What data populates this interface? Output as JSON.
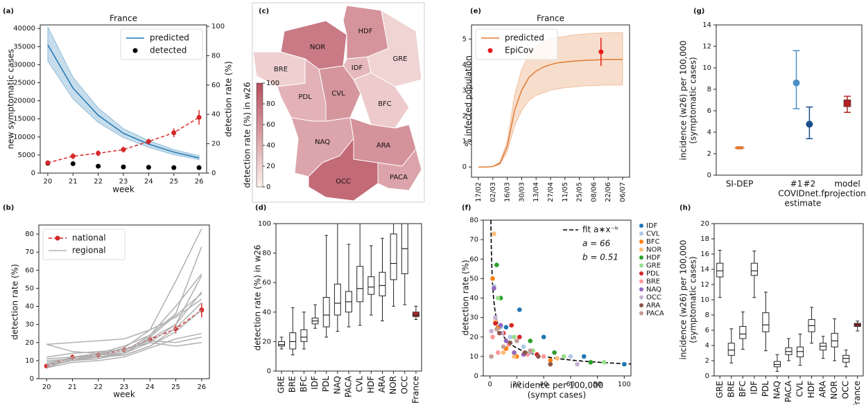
{
  "chart_data": [
    {
      "panel": "(a)",
      "type": "line",
      "title": "France",
      "xlabel": "week",
      "ylabel": "new symptomatic cases",
      "y2label": "detection rate (%)",
      "x": [
        20,
        21,
        22,
        23,
        24,
        25,
        26
      ],
      "xlim": [
        19.7,
        26.3
      ],
      "xticks": [
        20,
        21,
        22,
        23,
        24,
        25,
        26
      ],
      "ylim": [
        0,
        41000
      ],
      "yticks": [
        0,
        5000,
        10000,
        15000,
        20000,
        25000,
        30000,
        35000,
        40000
      ],
      "y2lim": [
        0,
        101
      ],
      "y2ticks": [
        0,
        20,
        40,
        60,
        80,
        100
      ],
      "legend": "upper right",
      "series": [
        {
          "name": "predicted",
          "color": "#1f77b4",
          "values": [
            35500,
            23500,
            16000,
            11000,
            8000,
            5800,
            4200
          ],
          "lower": [
            31000,
            20500,
            14000,
            9800,
            7100,
            5100,
            3700
          ],
          "upper": [
            40500,
            26500,
            18000,
            12300,
            9000,
            6500,
            4800
          ]
        },
        {
          "name": "detected",
          "color": "#000000",
          "style": "markers",
          "marker": "dot",
          "values": [
            2700,
            2600,
            1900,
            1700,
            1600,
            1500,
            1500
          ]
        },
        {
          "color": "#d62728",
          "axis": "y2",
          "style": "dashed",
          "marker": "dot",
          "values": [
            7,
            11.5,
            13.5,
            16,
            21.5,
            27.5,
            38
          ],
          "errors": [
            1,
            2,
            2,
            2,
            2,
            3,
            5
          ]
        }
      ]
    },
    {
      "panel": "(b)",
      "type": "line",
      "xlabel": "week",
      "ylabel": "detection rate (%)",
      "x": [
        20,
        21,
        22,
        23,
        24,
        25,
        26
      ],
      "xlim": [
        19.7,
        26.3
      ],
      "xticks": [
        20,
        21,
        22,
        23,
        24,
        25,
        26
      ],
      "ylim": [
        0,
        85
      ],
      "yticks": [
        0,
        10,
        20,
        30,
        40,
        50,
        60,
        70,
        80
      ],
      "legend": "upper left",
      "series": [
        {
          "name": "national",
          "color": "#d62728",
          "style": "dashed",
          "marker": "dot",
          "values": [
            7,
            11.8,
            13.2,
            16,
            21.8,
            27.5,
            38
          ],
          "errors": [
            1,
            1.5,
            1.8,
            1.6,
            2,
            2.5,
            4
          ]
        },
        {
          "name": "regional",
          "color": "#b0b0b0",
          "lines": [
            [
              7,
              10,
              11,
              14,
              20,
              30,
              48
            ],
            [
              19,
              20,
              21,
              22,
              27,
              34,
              44
            ],
            [
              6,
              11,
              13,
              15,
              24,
              40,
              58
            ],
            [
              8,
              12,
              13,
              14,
              22,
              30,
              57
            ],
            [
              11,
              12,
              14,
              18,
              24,
              36,
              73
            ],
            [
              10,
              11,
              12,
              13,
              18,
              26,
              38
            ],
            [
              6,
              9,
              10,
              12,
              17,
              22,
              25
            ],
            [
              7,
              10,
              13,
              17,
              27,
              54,
              83
            ],
            [
              9,
              11,
              12,
              14,
              23,
              35,
              47
            ],
            [
              19,
              15,
              14,
              16,
              20,
              18,
              20
            ],
            [
              12,
              14,
              15,
              16,
              21,
              20,
              23
            ],
            [
              8,
              10,
              12,
              13,
              18,
              28,
              42
            ]
          ]
        }
      ]
    },
    {
      "panel": "(c)",
      "type": "map",
      "colorbar_label": "detection rate (%) in w26",
      "regions": [
        "IDF",
        "CVL",
        "BFC",
        "NOR",
        "HDF",
        "GRE",
        "PDL",
        "BRE",
        "NAQ",
        "OCC",
        "ARA",
        "PACA"
      ],
      "values": [
        34,
        56,
        23,
        73,
        57,
        18,
        38,
        20,
        46,
        83,
        58,
        47
      ],
      "clim": [
        0,
        100
      ],
      "cticks": [
        0,
        20,
        40,
        60,
        80,
        100
      ],
      "colors": [
        "#fdf0ed",
        "#b64e5e"
      ]
    },
    {
      "panel": "(d)",
      "type": "box",
      "ylabel": "detection rate (%) in w26",
      "categories": [
        "GRE",
        "BRE",
        "BFC",
        "IDF",
        "PDL",
        "NAQ",
        "PACA",
        "CVL",
        "HDF",
        "ARA",
        "NOR",
        "OCC",
        "France"
      ],
      "whisker_low": [
        15,
        11,
        15,
        29,
        23,
        27,
        30,
        31,
        38,
        34,
        44,
        45,
        35
      ],
      "q1": [
        17,
        15,
        20,
        32,
        30,
        38,
        40,
        47,
        52,
        51,
        62,
        66,
        37
      ],
      "median": [
        18,
        20,
        23,
        34,
        38,
        46,
        47,
        56,
        57,
        58,
        73,
        83,
        38
      ],
      "q3": [
        20,
        26,
        28,
        36,
        50,
        59,
        54,
        71,
        64,
        67,
        93,
        100,
        40
      ],
      "whisker_high": [
        23,
        43,
        40,
        45,
        92,
        100,
        86,
        100,
        85,
        90,
        100,
        100,
        44
      ],
      "colors": [
        "#ffffff",
        "#ffffff",
        "#ffffff",
        "#ffffff",
        "#ffffff",
        "#ffffff",
        "#ffffff",
        "#ffffff",
        "#ffffff",
        "#ffffff",
        "#ffffff",
        "#ffffff",
        "#c0282d"
      ],
      "ylim": [
        0,
        100
      ],
      "yticks": [
        0,
        20,
        40,
        60,
        80,
        100
      ]
    },
    {
      "panel": "(e)",
      "type": "line",
      "title": "France",
      "ylabel": "% infected population",
      "x": [
        "17/02",
        null,
        "02/03",
        null,
        "16/03",
        null,
        "30/03",
        null,
        "13/04",
        null,
        "27/04",
        null,
        "11/05",
        null,
        "25/05",
        null,
        "08/06",
        null,
        "22/06",
        null,
        "06/07"
      ],
      "ylim": [
        -0.4,
        5.55
      ],
      "yticks": [
        0,
        1,
        2,
        3,
        4,
        5
      ],
      "legend": "upper left",
      "series": [
        {
          "name": "predicted",
          "color": "#e07a32",
          "values": [
            0,
            0,
            0.02,
            0.15,
            0.8,
            2.2,
            3.0,
            3.5,
            3.75,
            3.9,
            4.0,
            4.07,
            4.1,
            4.13,
            4.15,
            4.17,
            4.18,
            4.19,
            4.2,
            4.2,
            4.2
          ],
          "lower": [
            0,
            0,
            0.01,
            0.1,
            0.6,
            1.6,
            2.2,
            2.6,
            2.8,
            2.9,
            3.0,
            3.05,
            3.1,
            3.12,
            3.15,
            3.17,
            3.18,
            3.19,
            3.2,
            3.2,
            3.2
          ],
          "upper": [
            0,
            0,
            0.03,
            0.2,
            1.0,
            2.8,
            3.8,
            4.4,
            4.7,
            4.9,
            5.0,
            5.07,
            5.1,
            5.15,
            5.18,
            5.2,
            5.22,
            5.23,
            5.24,
            5.25,
            5.25
          ]
        },
        {
          "name": "EpiCov",
          "color": "#e8191a",
          "style": "markers",
          "marker": "dot",
          "values": [
            null,
            null,
            null,
            null,
            null,
            null,
            null,
            null,
            null,
            null,
            null,
            null,
            null,
            null,
            null,
            null,
            null,
            4.5,
            null,
            null,
            null
          ],
          "errors": [
            null,
            null,
            null,
            null,
            null,
            null,
            null,
            null,
            null,
            null,
            null,
            null,
            null,
            null,
            null,
            null,
            null,
            0.55,
            null,
            null,
            null
          ]
        }
      ]
    },
    {
      "panel": "(f)",
      "type": "scatter",
      "xlabel": [
        "incidence per 100,000",
        "(sympt cases)"
      ],
      "ylabel": "detection rate (%)",
      "xlim": [
        -5,
        105
      ],
      "xticks": [
        0,
        20,
        40,
        60,
        80,
        100
      ],
      "ylim": [
        0,
        80
      ],
      "yticks": [
        0,
        10,
        20,
        30,
        40,
        50,
        60,
        70,
        80
      ],
      "legend": "outside right",
      "fit": {
        "label": "fit a∗x⁻ᵇ",
        "a": 66,
        "b": 0.51,
        "a_label": "a = 66",
        "b_label": "b = 0.51",
        "color": "#000000"
      },
      "series": [
        {
          "name": "IDF",
          "color": "#1f77b4",
          "x": [
            22,
            40,
            70,
            100,
            12
          ],
          "values": [
            34,
            20,
            10,
            6,
            25
          ]
        },
        {
          "name": "CVL",
          "color": "#aec7e8",
          "x": [
            3,
            8,
            15,
            25,
            60
          ],
          "values": [
            46,
            25,
            20,
            15,
            10
          ]
        },
        {
          "name": "BFC",
          "color": "#ff7f0e",
          "x": [
            2,
            6,
            12,
            20,
            45
          ],
          "values": [
            50,
            25,
            14,
            10,
            8
          ]
        },
        {
          "name": "NOR",
          "color": "#ffbb78",
          "x": [
            3,
            4,
            10,
            18,
            50
          ],
          "values": [
            73,
            28,
            12,
            10,
            9
          ]
        },
        {
          "name": "HDF",
          "color": "#2ca02c",
          "x": [
            5,
            8,
            30,
            48,
            75
          ],
          "values": [
            57,
            40,
            18,
            12,
            7
          ]
        },
        {
          "name": "GRE",
          "color": "#98df8a",
          "x": [
            6,
            18,
            32,
            55,
            85
          ],
          "values": [
            40,
            20,
            13,
            10,
            7
          ]
        },
        {
          "name": "PDL",
          "color": "#d62728",
          "x": [
            4,
            10,
            16,
            22,
            35
          ],
          "values": [
            27,
            22,
            26,
            20,
            11
          ]
        },
        {
          "name": "BRE",
          "color": "#ff9896",
          "x": [
            2,
            6,
            14,
            28,
            40
          ],
          "values": [
            20,
            12,
            16,
            11,
            10
          ]
        },
        {
          "name": "NAQ",
          "color": "#9467bd",
          "x": [
            3,
            8,
            12,
            18,
            25
          ],
          "values": [
            45,
            26,
            18,
            12,
            11
          ]
        },
        {
          "name": "OCC",
          "color": "#c5b0d5",
          "x": [
            1,
            4,
            9,
            30,
            65
          ],
          "values": [
            23,
            30,
            22,
            12,
            6
          ]
        },
        {
          "name": "ARA",
          "color": "#8c564b",
          "x": [
            7,
            15,
            26,
            36,
            45
          ],
          "values": [
            22,
            17,
            12,
            10,
            6
          ]
        },
        {
          "name": "PACA",
          "color": "#c49c94",
          "x": [
            1,
            5,
            10,
            20,
            30
          ],
          "values": [
            10,
            24,
            15,
            18,
            13
          ]
        }
      ]
    },
    {
      "panel": "(g)",
      "type": "errorpoint",
      "ylabel": [
        "incidence (w26) per 100,000",
        "(symptomatic cases)"
      ],
      "categories": [
        [
          "SI-DEP"
        ],
        [
          "#1"
        ],
        [
          "#2"
        ],
        [
          "model",
          "projections"
        ]
      ],
      "group_label": [
        "COVIDnet.fr",
        "estimate"
      ],
      "values": [
        2.55,
        8.6,
        4.75,
        6.7
      ],
      "lower": [
        2.45,
        6.2,
        3.4,
        5.85
      ],
      "upper": [
        2.65,
        11.6,
        6.35,
        7.35
      ],
      "colors": [
        "#e07a32",
        "#4a90c8",
        "#1a4f8c",
        "#b22222"
      ],
      "markers": [
        "dash",
        "circle",
        "circle",
        "square"
      ],
      "ylim": [
        0,
        14
      ],
      "yticks": [
        0,
        2,
        4,
        6,
        8,
        10,
        12,
        14
      ]
    },
    {
      "panel": "(h)",
      "type": "box",
      "ylabel": [
        "incidence (w26) per 100,000",
        "(symptomatic cases)"
      ],
      "categories": [
        "GRE",
        "BRE",
        "BFC",
        "IDF",
        "PDL",
        "NAQ",
        "PACA",
        "CVL",
        "HDF",
        "ARA",
        "NOR",
        "OCC",
        "France"
      ],
      "whisker_low": [
        10.3,
        1.7,
        3.5,
        10.3,
        3.3,
        0.6,
        2,
        1.4,
        4.3,
        2.3,
        2,
        1.2,
        5.9
      ],
      "q1": [
        13,
        2.7,
        4.9,
        13.2,
        5.8,
        1.2,
        2.8,
        2.5,
        5.8,
        3.4,
        3.8,
        1.8,
        6.5
      ],
      "median": [
        13.8,
        3.4,
        5.5,
        13.8,
        6.7,
        1.5,
        3.2,
        3.2,
        6.6,
        3.9,
        4.6,
        2.3,
        6.7
      ],
      "q3": [
        14.8,
        4.3,
        6.5,
        14.8,
        8.3,
        1.9,
        3.7,
        3.8,
        7.4,
        4.3,
        5.6,
        2.7,
        6.9
      ],
      "whisker_high": [
        16.5,
        6.2,
        8.4,
        16.4,
        11,
        2.8,
        4.9,
        5.5,
        9,
        5.2,
        7.5,
        3.4,
        7.2
      ],
      "colors": [
        "#ffffff",
        "#ffffff",
        "#ffffff",
        "#ffffff",
        "#ffffff",
        "#ffffff",
        "#ffffff",
        "#ffffff",
        "#ffffff",
        "#ffffff",
        "#ffffff",
        "#ffffff",
        "#c0282d"
      ],
      "ylim": [
        0,
        20
      ],
      "yticks": [
        0,
        2,
        4,
        6,
        8,
        10,
        12,
        14,
        16,
        18,
        20
      ]
    }
  ]
}
